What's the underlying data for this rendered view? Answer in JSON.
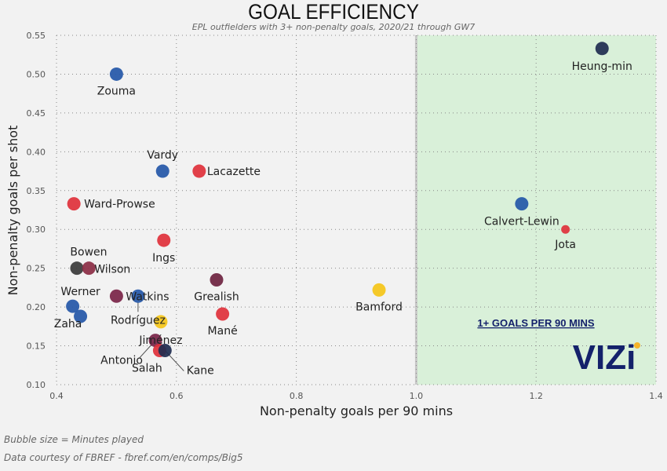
{
  "title": "GOAL EFFICIENCY",
  "subtitle": "EPL outfielders with 3+ non-penalty goals, 2020/21 through GW7",
  "footer": {
    "size_note": "Bubble size = Minutes played",
    "source": "Data courtesy of FBREF - fbref.com/en/comps/Big5"
  },
  "annotation": "1+ GOALS PER 90 MINS",
  "logo": "VIZi",
  "colors": {
    "highlight_region": "#d9f0d9",
    "logo": "#14216b",
    "logo_dot": "#f5b429"
  },
  "chart_data": {
    "type": "scatter",
    "xlabel": "Non-penalty goals per 90 mins",
    "ylabel": "Non-penalty goals per shot",
    "xlim": [
      0.4,
      1.4
    ],
    "ylim": [
      0.1,
      0.55
    ],
    "xticks": [
      "0.4",
      "0.6",
      "0.8",
      "1.0",
      "1.2",
      "1.4"
    ],
    "yticks": [
      "0.10",
      "0.15",
      "0.20",
      "0.25",
      "0.30",
      "0.35",
      "0.40",
      "0.45",
      "0.50",
      "0.55"
    ],
    "grid": true,
    "highlight_region": {
      "x_from": 1.0,
      "x_to": 1.4,
      "label": "1+ GOALS PER 90 MINS"
    },
    "points": [
      {
        "name": "Heung-min",
        "x": 1.31,
        "y": 0.533,
        "color": "#1f2d50"
      },
      {
        "name": "Zouma",
        "x": 0.5,
        "y": 0.5,
        "color": "#2457a8"
      },
      {
        "name": "Vardy",
        "x": 0.577,
        "y": 0.375,
        "color": "#2457a8"
      },
      {
        "name": "Lacazette",
        "x": 0.638,
        "y": 0.375,
        "color": "#e0313b"
      },
      {
        "name": "Ward-Prowse",
        "x": 0.429,
        "y": 0.333,
        "color": "#e0313b"
      },
      {
        "name": "Calvert-Lewin",
        "x": 1.176,
        "y": 0.333,
        "color": "#2457a8"
      },
      {
        "name": "Jota",
        "x": 1.249,
        "y": 0.3,
        "color": "#e0313b"
      },
      {
        "name": "Ings",
        "x": 0.579,
        "y": 0.286,
        "color": "#e0313b"
      },
      {
        "name": "Bowen",
        "x": 0.434,
        "y": 0.25,
        "color": "#3a3a3a"
      },
      {
        "name": "Wilson",
        "x": 0.454,
        "y": 0.25,
        "color": "#8b2c44"
      },
      {
        "name": "Grealish",
        "x": 0.667,
        "y": 0.235,
        "color": "#6e2340"
      },
      {
        "name": "Bamford",
        "x": 0.938,
        "y": 0.222,
        "color": "#f5c518"
      },
      {
        "name": "Werner",
        "x": 0.427,
        "y": 0.201,
        "color": "#2457a8"
      },
      {
        "name": "Zaha",
        "x": 0.44,
        "y": 0.188,
        "color": "#2457a8"
      },
      {
        "name": "Watkins",
        "x": 0.5,
        "y": 0.214,
        "color": "#7a2448"
      },
      {
        "name": "Rodríguez",
        "x": 0.536,
        "y": 0.214,
        "color": "#2457a8"
      },
      {
        "name": "Mané",
        "x": 0.677,
        "y": 0.191,
        "color": "#e0313b"
      },
      {
        "name": "Jiménez",
        "x": 0.574,
        "y": 0.181,
        "color": "#f5c518"
      },
      {
        "name": "Antonio",
        "x": 0.565,
        "y": 0.157,
        "color": "#7a2448"
      },
      {
        "name": "Salah",
        "x": 0.572,
        "y": 0.144,
        "color": "#e0313b"
      },
      {
        "name": "Kane",
        "x": 0.581,
        "y": 0.144,
        "color": "#1f2d50"
      }
    ]
  }
}
